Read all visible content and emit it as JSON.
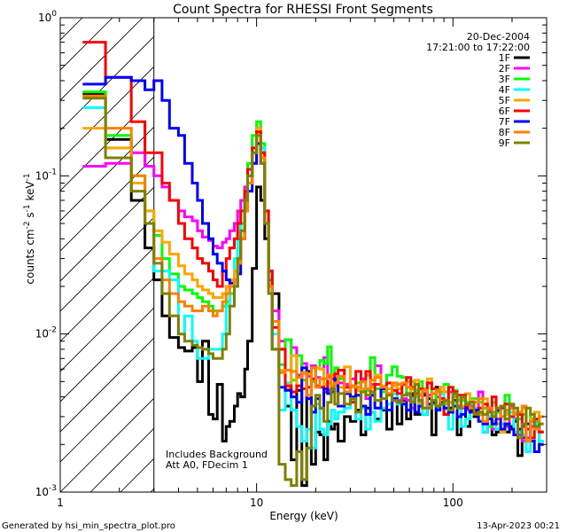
{
  "chart_data": {
    "type": "line",
    "title": "Count Spectra for RHESSI Front Segments",
    "date": "20-Dec-2004",
    "time_range": "17:21:00 to 17:22:00",
    "xlabel": "Energy (keV)",
    "ylabel_parts": [
      "counts cm",
      "-2",
      " s",
      "-1",
      " keV",
      "-1"
    ],
    "xscale": "log",
    "yscale": "log",
    "xlim": [
      1,
      300
    ],
    "ylim": [
      0.001,
      1
    ],
    "x_ticks": [
      {
        "value": 1,
        "label": "1"
      },
      {
        "value": 10,
        "label": "10"
      },
      {
        "value": 100,
        "label": "100"
      }
    ],
    "y_ticks": [
      {
        "value": 1,
        "base": "10",
        "exp": "0"
      },
      {
        "value": 0.1,
        "base": "10",
        "exp": "-1"
      },
      {
        "value": 0.01,
        "base": "10",
        "exp": "-2"
      },
      {
        "value": 0.001,
        "base": "10",
        "exp": "-3"
      }
    ],
    "hatched_region_x": [
      1,
      3
    ],
    "annotations": [
      "Includes Background",
      "Att A0, FDecim 1"
    ],
    "footer_left": "Generated by hsi_min_spectra_plot.pro",
    "footer_right": "13-Apr-2023 00:21",
    "legend_position": "top-right",
    "energy_edges": [
      1.3,
      1.7,
      2.3,
      2.7,
      3.0,
      3.3,
      3.6,
      4.0,
      4.3,
      4.7,
      5.0,
      5.3,
      5.7,
      6.0,
      6.3,
      6.7,
      7.0,
      7.3,
      7.7,
      8.0,
      8.3,
      8.7,
      9.0,
      9.5,
      10.0,
      10.5,
      11.0,
      11.5,
      12.0,
      13.0,
      14.0,
      15.0,
      16.0,
      17.0,
      18.0,
      19.0,
      20.0,
      21.0,
      22.0,
      23.0,
      24.0,
      25.0,
      26.0,
      28.0,
      30.0,
      32.0,
      34.0,
      36.0,
      38.0,
      40.0,
      43.0,
      46.0,
      49.0,
      52.0,
      55.0,
      58.0,
      61.0,
      64.0,
      67.0,
      70.0,
      74.0,
      78.0,
      82.0,
      86.0,
      90.0,
      95.0,
      100.0,
      105.0,
      110.0,
      116.0,
      122.0,
      128.0,
      135.0,
      142.0,
      150.0,
      158.0,
      166.0,
      175.0,
      184.0,
      194.0,
      204.0,
      214.0,
      225.0,
      236.0,
      248.0,
      260.0,
      275.0,
      290.0
    ],
    "series": [
      {
        "name": "1F",
        "color": "#000000",
        "values": [
          0.33,
          0.17,
          0.07,
          0.035,
          0.022,
          0.013,
          0.0095,
          0.0082,
          0.0078,
          0.0082,
          0.005,
          0.009,
          0.0031,
          0.0029,
          0.0048,
          0.0021,
          0.0026,
          0.0028,
          0.0035,
          0.0042,
          0.004,
          0.006,
          0.009,
          0.026,
          0.085,
          0.07,
          0.04,
          0.025,
          0.018,
          0.008,
          0.0035,
          0.0016,
          0.0044,
          0.0011,
          0.0058,
          0.0015,
          0.0024,
          0.0023,
          0.0016,
          0.0028,
          0.0025,
          0.0027,
          0.0021,
          0.003,
          0.0028,
          0.0033,
          0.0023,
          0.0034,
          0.0032,
          0.0029,
          0.0033,
          0.0025,
          0.0038,
          0.0027,
          0.0038,
          0.0029,
          0.0042,
          0.0031,
          0.0031,
          0.0031,
          0.0039,
          0.0023,
          0.0046,
          0.0037,
          0.0031,
          0.0034,
          0.0038,
          0.0023,
          0.0039,
          0.0026,
          0.0033,
          0.003,
          0.0031,
          0.0024,
          0.0032,
          0.0023,
          0.0024,
          0.0025,
          0.0024,
          0.0026,
          0.0028,
          0.0017,
          0.0021,
          0.0025,
          0.0026,
          0.0027,
          0.0024
        ]
      },
      {
        "name": "2F",
        "color": "#ff00ff",
        "values": [
          0.115,
          0.12,
          0.14,
          0.115,
          0.1,
          0.085,
          0.07,
          0.06,
          0.055,
          0.052,
          0.045,
          0.041,
          0.039,
          0.036,
          0.035,
          0.038,
          0.04,
          0.045,
          0.05,
          0.06,
          0.07,
          0.085,
          0.1,
          0.12,
          0.2,
          0.15,
          0.06,
          0.022,
          0.014,
          0.009,
          0.0092,
          0.0082,
          0.0055,
          0.0065,
          0.0054,
          0.0063,
          0.0053,
          0.0046,
          0.0071,
          0.0044,
          0.0046,
          0.0051,
          0.0049,
          0.0048,
          0.0052,
          0.0044,
          0.0052,
          0.0039,
          0.0048,
          0.0063,
          0.0039,
          0.0045,
          0.0038,
          0.0038,
          0.0039,
          0.0038,
          0.0034,
          0.0048,
          0.0037,
          0.0034,
          0.0041,
          0.0042,
          0.004,
          0.0039,
          0.0037,
          0.0043,
          0.0041,
          0.0035,
          0.0034,
          0.0033,
          0.0035,
          0.0034,
          0.0043,
          0.0024,
          0.0033,
          0.0025,
          0.0029,
          0.0027,
          0.0026,
          0.0035,
          0.0029,
          0.0023,
          0.0021,
          0.0022,
          0.0026,
          0.0028,
          0.0021
        ]
      },
      {
        "name": "3F",
        "color": "#00ff00",
        "values": [
          0.34,
          0.18,
          0.1,
          0.06,
          0.042,
          0.03,
          0.024,
          0.02,
          0.019,
          0.018,
          0.017,
          0.016,
          0.015,
          0.014,
          0.014,
          0.015,
          0.016,
          0.018,
          0.02,
          0.03,
          0.05,
          0.08,
          0.12,
          0.18,
          0.22,
          0.16,
          0.06,
          0.025,
          0.012,
          0.0064,
          0.0092,
          0.0051,
          0.0073,
          0.0051,
          0.0056,
          0.005,
          0.0061,
          0.0068,
          0.0065,
          0.0083,
          0.0047,
          0.0061,
          0.0052,
          0.0046,
          0.0047,
          0.0049,
          0.0044,
          0.0044,
          0.0071,
          0.0045,
          0.0043,
          0.0055,
          0.0062,
          0.0054,
          0.0053,
          0.0041,
          0.005,
          0.0044,
          0.005,
          0.0042,
          0.0049,
          0.0036,
          0.0043,
          0.0043,
          0.0048,
          0.0037,
          0.0044,
          0.0038,
          0.0038,
          0.0037,
          0.0039,
          0.0039,
          0.0037,
          0.0034,
          0.0026,
          0.0037,
          0.0032,
          0.0035,
          0.0041,
          0.003,
          0.0031,
          0.0029,
          0.0031,
          0.0021,
          0.0031,
          0.0028,
          0.002
        ]
      },
      {
        "name": "4F",
        "color": "#00ffff",
        "values": [
          0.27,
          0.15,
          0.09,
          0.05,
          0.025,
          0.025,
          0.022,
          0.01,
          0.013,
          0.009,
          0.007,
          0.007,
          0.008,
          0.008,
          0.008,
          0.01,
          0.015,
          0.02,
          0.03,
          0.04,
          0.06,
          0.08,
          0.1,
          0.15,
          0.19,
          0.15,
          0.05,
          0.02,
          0.01,
          0.0033,
          0.0049,
          0.0033,
          0.0026,
          0.0021,
          0.0025,
          0.0019,
          0.0036,
          0.0025,
          0.0023,
          0.0027,
          0.0033,
          0.0029,
          0.0032,
          0.0034,
          0.0038,
          0.0029,
          0.0034,
          0.0025,
          0.0032,
          0.0028,
          0.0034,
          0.0036,
          0.0042,
          0.0036,
          0.0036,
          0.0033,
          0.0038,
          0.004,
          0.0035,
          0.0031,
          0.0035,
          0.0038,
          0.0034,
          0.0042,
          0.0036,
          0.0025,
          0.0037,
          0.0039,
          0.0026,
          0.0029,
          0.0037,
          0.0034,
          0.0034,
          0.0024,
          0.003,
          0.0031,
          0.0025,
          0.0027,
          0.0032,
          0.0032,
          0.0024,
          0.0024,
          0.0023,
          0.0018,
          0.0021,
          0.0027,
          0.0021
        ]
      },
      {
        "name": "5F",
        "color": "#ffa500",
        "values": [
          0.2,
          0.15,
          0.09,
          0.06,
          0.045,
          0.038,
          0.032,
          0.027,
          0.024,
          0.022,
          0.02,
          0.019,
          0.018,
          0.017,
          0.017,
          0.018,
          0.02,
          0.022,
          0.025,
          0.03,
          0.04,
          0.06,
          0.09,
          0.14,
          0.2,
          0.14,
          0.05,
          0.02,
          0.012,
          0.0059,
          0.0045,
          0.0073,
          0.0047,
          0.0056,
          0.0056,
          0.0051,
          0.0061,
          0.006,
          0.0048,
          0.0049,
          0.0055,
          0.0047,
          0.0046,
          0.0062,
          0.0046,
          0.0044,
          0.0045,
          0.0055,
          0.0046,
          0.0055,
          0.0047,
          0.0045,
          0.0047,
          0.0045,
          0.0048,
          0.005,
          0.004,
          0.0051,
          0.0041,
          0.0045,
          0.0052,
          0.0045,
          0.0043,
          0.0046,
          0.0043,
          0.0037,
          0.0041,
          0.0041,
          0.0035,
          0.0042,
          0.0038,
          0.0032,
          0.0031,
          0.0039,
          0.0029,
          0.0028,
          0.0027,
          0.0024,
          0.0031,
          0.0034,
          0.0032,
          0.0031,
          0.0034,
          0.0025,
          0.0029,
          0.0032,
          0.0024
        ]
      },
      {
        "name": "6F",
        "color": "#ff0000",
        "values": [
          0.7,
          0.42,
          0.22,
          0.14,
          0.14,
          0.09,
          0.07,
          0.05,
          0.04,
          0.035,
          0.03,
          0.028,
          0.025,
          0.022,
          0.02,
          0.025,
          0.03,
          0.035,
          0.04,
          0.05,
          0.06,
          0.08,
          0.11,
          0.15,
          0.19,
          0.14,
          0.06,
          0.025,
          0.011,
          0.008,
          0.0047,
          0.0043,
          0.0047,
          0.0045,
          0.0046,
          0.0052,
          0.0047,
          0.0046,
          0.0043,
          0.0054,
          0.0052,
          0.0056,
          0.0059,
          0.0046,
          0.0037,
          0.0058,
          0.005,
          0.0058,
          0.0041,
          0.0048,
          0.0045,
          0.0049,
          0.0044,
          0.0042,
          0.0048,
          0.0053,
          0.0046,
          0.0042,
          0.0045,
          0.0042,
          0.0049,
          0.0045,
          0.0044,
          0.0039,
          0.0031,
          0.0046,
          0.0043,
          0.0041,
          0.0041,
          0.0035,
          0.0037,
          0.0032,
          0.0034,
          0.0036,
          0.0034,
          0.004,
          0.0033,
          0.0034,
          0.0036,
          0.003,
          0.0031,
          0.0031,
          0.0026,
          0.0025,
          0.0022,
          0.0029,
          0.0024
        ]
      },
      {
        "name": "7F",
        "color": "#0000ff",
        "values": [
          0.38,
          0.42,
          0.4,
          0.35,
          0.4,
          0.3,
          0.2,
          0.18,
          0.12,
          0.09,
          0.07,
          0.05,
          0.04,
          0.032,
          0.028,
          0.025,
          0.022,
          0.021,
          0.02,
          0.024,
          0.04,
          0.06,
          0.08,
          0.12,
          0.16,
          0.12,
          0.05,
          0.02,
          0.008,
          0.0046,
          0.0044,
          0.004,
          0.0037,
          0.0061,
          0.0039,
          0.0032,
          0.0039,
          0.0034,
          0.0045,
          0.0042,
          0.0043,
          0.0052,
          0.0035,
          0.0042,
          0.004,
          0.0041,
          0.0035,
          0.0031,
          0.0041,
          0.0034,
          0.0045,
          0.0033,
          0.0039,
          0.0037,
          0.0036,
          0.0033,
          0.0041,
          0.0032,
          0.0035,
          0.0041,
          0.0036,
          0.0037,
          0.0033,
          0.0036,
          0.0034,
          0.0032,
          0.0035,
          0.003,
          0.0031,
          0.0034,
          0.0032,
          0.0033,
          0.0028,
          0.0027,
          0.0029,
          0.0027,
          0.0033,
          0.0025,
          0.0027,
          0.0025,
          0.0023,
          0.0025,
          0.0022,
          0.0027,
          0.0021,
          0.0018,
          0.002
        ]
      },
      {
        "name": "8F",
        "color": "#ff7f00",
        "values": [
          0.32,
          0.2,
          0.1,
          0.05,
          0.03,
          0.022,
          0.018,
          0.016,
          0.015,
          0.014,
          0.014,
          0.015,
          0.014,
          0.013,
          0.014,
          0.016,
          0.018,
          0.02,
          0.022,
          0.028,
          0.04,
          0.06,
          0.09,
          0.14,
          0.18,
          0.13,
          0.05,
          0.02,
          0.012,
          0.0057,
          0.0059,
          0.0058,
          0.0053,
          0.0057,
          0.0041,
          0.0061,
          0.0046,
          0.0052,
          0.0052,
          0.0055,
          0.0045,
          0.0049,
          0.0054,
          0.0043,
          0.0047,
          0.0046,
          0.005,
          0.0045,
          0.0051,
          0.0053,
          0.0046,
          0.0042,
          0.0049,
          0.0048,
          0.0049,
          0.0046,
          0.0045,
          0.0041,
          0.0037,
          0.0044,
          0.0034,
          0.0042,
          0.0044,
          0.0036,
          0.0037,
          0.0037,
          0.004,
          0.0038,
          0.0039,
          0.0036,
          0.0034,
          0.0037,
          0.0039,
          0.0028,
          0.0034,
          0.0032,
          0.0034,
          0.003,
          0.0033,
          0.0034,
          0.0031,
          0.0032,
          0.0035,
          0.0021,
          0.0028,
          0.0025,
          0.003
        ]
      },
      {
        "name": "9F",
        "color": "#808000",
        "values": [
          0.31,
          0.13,
          0.08,
          0.05,
          0.028,
          0.018,
          0.013,
          0.01,
          0.009,
          0.0085,
          0.0082,
          0.008,
          0.0075,
          0.007,
          0.007,
          0.008,
          0.01,
          0.015,
          0.02,
          0.03,
          0.045,
          0.07,
          0.1,
          0.14,
          0.18,
          0.12,
          0.05,
          0.018,
          0.008,
          0.0015,
          0.0012,
          0.0011,
          0.0018,
          0.0012,
          0.0019,
          0.0035,
          0.0041,
          0.0034,
          0.0028,
          0.0037,
          0.0045,
          0.0036,
          0.0042,
          0.0036,
          0.0039,
          0.0032,
          0.0043,
          0.0041,
          0.0043,
          0.0038,
          0.0039,
          0.0041,
          0.0038,
          0.0037,
          0.0041,
          0.0042,
          0.0037,
          0.0048,
          0.0038,
          0.0034,
          0.0034,
          0.0038,
          0.0035,
          0.0036,
          0.0038,
          0.0033,
          0.0042,
          0.0034,
          0.004,
          0.0036,
          0.0037,
          0.0031,
          0.0032,
          0.0031,
          0.0032,
          0.003,
          0.0034,
          0.0035,
          0.0029,
          0.0036,
          0.0034,
          0.0022,
          0.0027,
          0.0034,
          0.0031,
          0.0026,
          0.0027
        ]
      }
    ]
  }
}
